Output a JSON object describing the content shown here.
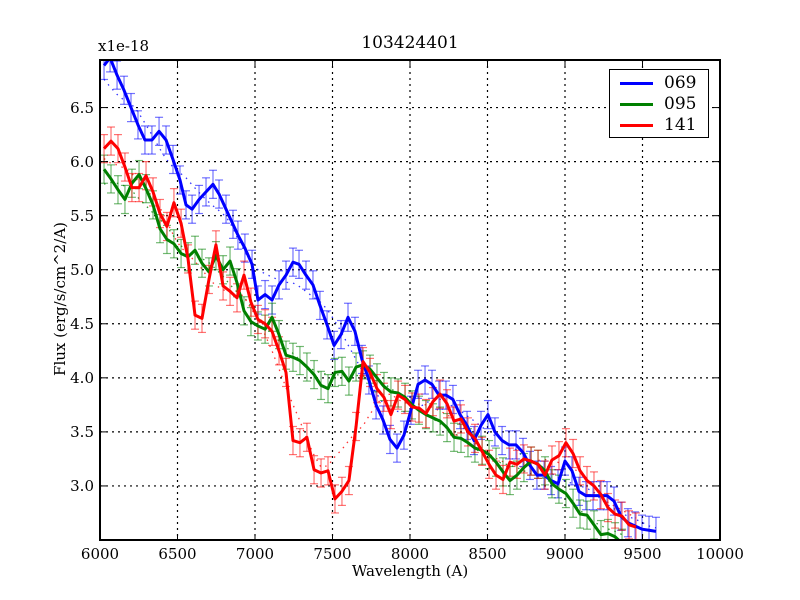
{
  "chart_data": {
    "type": "line",
    "title": "103424401",
    "xlabel": "Wavelength (A)",
    "ylabel": "Flux (erg/s/cm^2/A)",
    "y_offset_label": "x1e-18",
    "xlim": [
      6000,
      10000
    ],
    "ylim": [
      2.5,
      6.94
    ],
    "x_ticks": [
      6000,
      6500,
      7000,
      7500,
      8000,
      8500,
      9000,
      9500,
      10000
    ],
    "x_tick_labels": [
      "6000",
      "6500",
      "7000",
      "7500",
      "8000",
      "8500",
      "9000",
      "9500",
      "10000"
    ],
    "y_ticks": [
      3.0,
      3.5,
      4.0,
      4.5,
      5.0,
      5.5,
      6.0,
      6.5
    ],
    "y_tick_labels": [
      "3.0",
      "3.5",
      "4.0",
      "4.5",
      "5.0",
      "5.5",
      "6.0",
      "6.5"
    ],
    "grid": true,
    "grid_style": "dotted",
    "legend_position": "upper right",
    "error_bars": true,
    "error_bar_halfwidth": 0.13,
    "smoothed_model_lines": "dotted, same colors",
    "series": [
      {
        "name": "069",
        "color": "#0000ff",
        "x": [
          6026,
          6065,
          6110,
          6155,
          6200,
          6245,
          6290,
          6335,
          6381,
          6426,
          6471,
          6516,
          6555,
          6594,
          6639,
          6684,
          6729,
          6768,
          6813,
          6858,
          6890,
          6935,
          6981,
          7019,
          7065,
          7110,
          7155,
          7200,
          7245,
          7284,
          7329,
          7374,
          7419,
          7465,
          7510,
          7555,
          7600,
          7645,
          7690,
          7735,
          7781,
          7826,
          7871,
          7916,
          7961,
          8006,
          8052,
          8097,
          8142,
          8187,
          8232,
          8277,
          8323,
          8368,
          8413,
          8458,
          8503,
          8548,
          8594,
          8639,
          8684,
          8729,
          8774,
          8819,
          8865,
          8910,
          8955,
          9000,
          9045,
          9090,
          9135,
          9181,
          9226,
          9271,
          9316,
          9361,
          9406,
          9452,
          9497,
          9542,
          9587
        ],
        "values": [
          6.89,
          6.96,
          6.8,
          6.66,
          6.5,
          6.34,
          6.2,
          6.2,
          6.28,
          6.2,
          6.02,
          5.83,
          5.6,
          5.56,
          5.65,
          5.72,
          5.79,
          5.7,
          5.56,
          5.42,
          5.32,
          5.2,
          5.05,
          4.72,
          4.77,
          4.72,
          4.86,
          4.95,
          5.07,
          5.05,
          4.95,
          4.86,
          4.67,
          4.49,
          4.3,
          4.4,
          4.56,
          4.43,
          4.17,
          3.98,
          3.75,
          3.61,
          3.43,
          3.35,
          3.47,
          3.7,
          3.94,
          3.98,
          3.94,
          3.84,
          3.84,
          3.8,
          3.66,
          3.56,
          3.42,
          3.56,
          3.66,
          3.5,
          3.42,
          3.38,
          3.38,
          3.31,
          3.19,
          3.1,
          3.1,
          3.05,
          3.02,
          3.23,
          3.14,
          2.95,
          2.91,
          2.91,
          2.91,
          2.91,
          2.86,
          2.72,
          2.66,
          2.63,
          2.6,
          2.59,
          2.58
        ]
      },
      {
        "name": "095",
        "color": "#008000",
        "x": [
          6026,
          6071,
          6116,
          6161,
          6206,
          6252,
          6297,
          6342,
          6387,
          6432,
          6477,
          6523,
          6568,
          6613,
          6658,
          6703,
          6748,
          6794,
          6839,
          6884,
          6929,
          6974,
          7019,
          7065,
          7110,
          7155,
          7200,
          7245,
          7290,
          7335,
          7381,
          7426,
          7471,
          7516,
          7561,
          7606,
          7652,
          7697,
          7742,
          7787,
          7832,
          7877,
          7923,
          7968,
          8013,
          8058,
          8103,
          8148,
          8194,
          8239,
          8284,
          8329,
          8374,
          8419,
          8465,
          8510,
          8555,
          8600,
          8645,
          8690,
          8735,
          8781,
          8826,
          8871,
          8916,
          8961,
          9006,
          9052,
          9097,
          9142,
          9187,
          9232,
          9277,
          9323,
          9368
        ],
        "values": [
          5.93,
          5.84,
          5.74,
          5.65,
          5.8,
          5.88,
          5.75,
          5.6,
          5.38,
          5.28,
          5.24,
          5.15,
          5.12,
          5.18,
          5.06,
          4.98,
          5.13,
          5.0,
          5.08,
          4.88,
          4.62,
          4.52,
          4.48,
          4.45,
          4.56,
          4.4,
          4.21,
          4.19,
          4.16,
          4.1,
          4.03,
          3.93,
          3.9,
          4.05,
          4.06,
          3.97,
          4.1,
          4.12,
          4.08,
          4.0,
          3.92,
          3.87,
          3.86,
          3.82,
          3.75,
          3.7,
          3.66,
          3.63,
          3.6,
          3.54,
          3.45,
          3.44,
          3.4,
          3.35,
          3.33,
          3.29,
          3.22,
          3.13,
          3.05,
          3.1,
          3.17,
          3.23,
          3.2,
          3.14,
          3.02,
          2.97,
          2.93,
          2.84,
          2.74,
          2.73,
          2.64,
          2.55,
          2.56,
          2.53,
          2.47
        ]
      },
      {
        "name": "141",
        "color": "#ff0000",
        "x": [
          6026,
          6071,
          6116,
          6161,
          6206,
          6252,
          6297,
          6342,
          6387,
          6432,
          6477,
          6523,
          6568,
          6613,
          6658,
          6703,
          6748,
          6794,
          6839,
          6884,
          6929,
          6974,
          7019,
          7065,
          7110,
          7155,
          7200,
          7245,
          7290,
          7335,
          7381,
          7426,
          7471,
          7516,
          7561,
          7606,
          7652,
          7697,
          7742,
          7787,
          7832,
          7877,
          7923,
          7968,
          8013,
          8058,
          8103,
          8148,
          8194,
          8239,
          8284,
          8329,
          8374,
          8419,
          8465,
          8510,
          8555,
          8600,
          8645,
          8690,
          8735,
          8781,
          8826,
          8871,
          8916,
          8961,
          9006,
          9052,
          9097,
          9142,
          9187,
          9232,
          9277,
          9323,
          9368,
          9413,
          9458
        ],
        "values": [
          6.12,
          6.19,
          6.12,
          5.95,
          5.76,
          5.76,
          5.87,
          5.72,
          5.52,
          5.4,
          5.62,
          5.43,
          5.1,
          4.58,
          4.55,
          4.91,
          5.23,
          4.85,
          4.8,
          4.74,
          4.95,
          4.7,
          4.54,
          4.5,
          4.43,
          4.25,
          4.05,
          3.42,
          3.4,
          3.45,
          3.15,
          3.12,
          3.14,
          2.88,
          2.95,
          3.05,
          3.55,
          4.15,
          4.05,
          3.9,
          3.82,
          3.66,
          3.84,
          3.8,
          3.73,
          3.72,
          3.67,
          3.78,
          3.85,
          3.76,
          3.6,
          3.62,
          3.5,
          3.44,
          3.32,
          3.2,
          3.1,
          3.06,
          3.22,
          3.2,
          3.25,
          3.23,
          3.2,
          3.1,
          3.24,
          3.28,
          3.4,
          3.3,
          3.14,
          3.05,
          3.0,
          2.92,
          2.8,
          2.74,
          2.72,
          2.64,
          2.62
        ]
      }
    ]
  },
  "legend": {
    "items": [
      {
        "label": "069",
        "color": "#0000ff"
      },
      {
        "label": "095",
        "color": "#008000"
      },
      {
        "label": "141",
        "color": "#ff0000"
      }
    ]
  }
}
